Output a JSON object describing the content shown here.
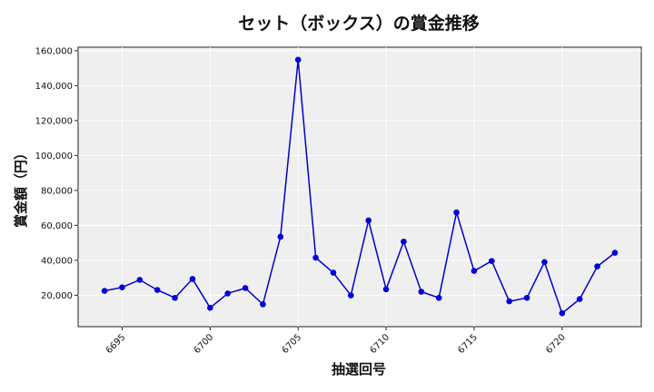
{
  "chart_data": {
    "type": "line",
    "title": "セット（ボックス）の賞金推移",
    "xlabel": "抽選回号",
    "ylabel": "賞金額（円）",
    "x": [
      6694,
      6695,
      6696,
      6697,
      6698,
      6699,
      6700,
      6701,
      6702,
      6703,
      6704,
      6705,
      6706,
      6707,
      6708,
      6709,
      6710,
      6711,
      6712,
      6713,
      6714,
      6715,
      6716,
      6717,
      6718,
      6719,
      6720,
      6721,
      6722,
      6723
    ],
    "values": [
      22500,
      24500,
      28800,
      23000,
      18500,
      29300,
      12800,
      21000,
      24100,
      14800,
      53500,
      154800,
      41500,
      32900,
      19900,
      62800,
      23400,
      50700,
      22000,
      18500,
      67400,
      33900,
      39600,
      16500,
      18500,
      39000,
      9700,
      17800,
      36500,
      44300
    ],
    "xlim": [
      6692.5,
      6724.5
    ],
    "ylim": [
      2000,
      162000
    ],
    "xticks": [
      6695,
      6700,
      6705,
      6710,
      6715,
      6720
    ],
    "xtick_labels": [
      "6695",
      "6700",
      "6705",
      "6710",
      "6715",
      "6720"
    ],
    "yticks": [
      20000,
      40000,
      60000,
      80000,
      100000,
      120000,
      140000,
      160000
    ],
    "ytick_labels": [
      "20,000",
      "40,000",
      "60,000",
      "80,000",
      "100,000",
      "120,000",
      "140,000",
      "160,000"
    ],
    "grid": true,
    "colors": {
      "line": "#0000cc",
      "marker": "#0000dd",
      "plot_bg": "#efeff0"
    }
  }
}
